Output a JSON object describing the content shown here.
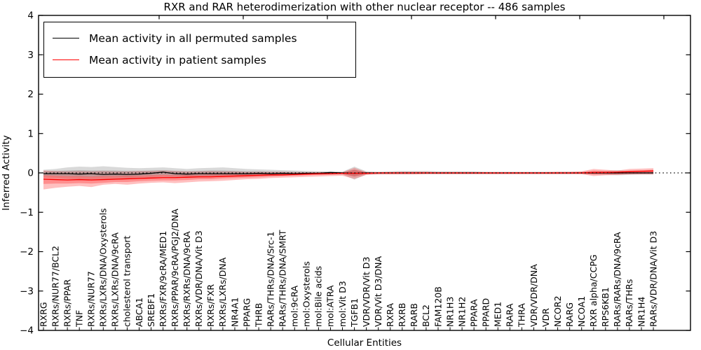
{
  "chart_data": {
    "type": "line",
    "title": "RXR and RAR heterodimerization with other nuclear receptor -- 486 samples",
    "xlabel": "Cellular Entities",
    "ylabel": "Inferred Activity",
    "ylim": [
      -4,
      4
    ],
    "yticks": [
      4,
      3,
      2,
      1,
      0,
      -1,
      -2,
      -3,
      -4
    ],
    "grid": false,
    "legend_position": "upper left",
    "zero_line": {
      "style": "dotted",
      "color": "#000000",
      "value": 0
    },
    "categories": [
      "RXRG",
      "RXRs/NUR77/BCL2",
      "RXRs/PPAR",
      "TNF",
      "RXRs/NUR77",
      "RXRs/LXRs/DNA/Oxysterols",
      "RXRs/LXRs/DNA/9cRA",
      "cholesterol transport",
      "ABCA1",
      "SREBF1",
      "RXRs/FXR/9cRA/MED1",
      "RXRs/PPAR/9cRA/PGJ2/DNA",
      "RXRs/RXRs/DNA/9cRA",
      "RXRs/VDR/DNA/Vit D3",
      "RXRs/FXR",
      "RXRs/LXRs/DNA",
      "NR4A1",
      "PPARG",
      "THRB",
      "RARs/THRs/DNA/Src-1",
      "RARs/THRs/DNA/SMRT",
      "mol:9cRA",
      "mol:Oxysterols",
      "mol:Bile acids",
      "mol:ATRA",
      "mol:Vit D3",
      "TGFB1",
      "VDR/VDR/Vit D3",
      "VDR/Vit D3/DNA",
      "RXRA",
      "RXRB",
      "RARB",
      "BCL2",
      "FAM120B",
      "NR1H3",
      "NR1H2",
      "PPARA",
      "PPARD",
      "MED1",
      "RARA",
      "THRA",
      "VDR/VDR/DNA",
      "VDR",
      "NCOR2",
      "RARG",
      "NCOA1",
      "RXR alpha/CCPG",
      "RPS6KB1",
      "RARs/RARs/DNA/9cRA",
      "RARs/THRs",
      "NR1H4",
      "RARs/VDR/DNA/Vit D3"
    ],
    "series": [
      {
        "name": "Mean activity in all permuted samples",
        "color": "#000000",
        "band_color": "#808080",
        "values": [
          -0.02,
          -0.02,
          -0.02,
          -0.03,
          -0.02,
          -0.04,
          -0.03,
          -0.04,
          -0.03,
          -0.01,
          0.02,
          -0.02,
          -0.03,
          -0.02,
          -0.02,
          -0.02,
          -0.02,
          -0.02,
          -0.01,
          -0.02,
          -0.01,
          -0.02,
          -0.01,
          -0.01,
          0.01,
          0,
          -0.01,
          0,
          0,
          0,
          0,
          0,
          0,
          0,
          0,
          0,
          0,
          0,
          0,
          0,
          0,
          0,
          0,
          0,
          0,
          0,
          0,
          0,
          0,
          0,
          0,
          0
        ],
        "band_outer_upper": [
          0.08,
          0.1,
          0.14,
          0.16,
          0.15,
          0.17,
          0.15,
          0.13,
          0.12,
          0.13,
          0.14,
          0.12,
          0.1,
          0.12,
          0.13,
          0.14,
          0.12,
          0.1,
          0.09,
          0.08,
          0.07,
          0.06,
          0.05,
          0.04,
          0.04,
          0.03,
          0.16,
          0.04,
          0.03,
          0.04,
          0.05,
          0.05,
          0.05,
          0.04,
          0.04,
          0.04,
          0.04,
          0.03,
          0.03,
          0.03,
          0.03,
          0.03,
          0.03,
          0.03,
          0.03,
          0.03,
          0.04,
          0.05,
          0.07,
          0.05,
          0.05,
          0.05
        ],
        "band_outer_lower": [
          -0.12,
          -0.13,
          -0.15,
          -0.16,
          -0.17,
          -0.16,
          -0.15,
          -0.16,
          -0.14,
          -0.12,
          -0.1,
          -0.12,
          -0.13,
          -0.12,
          -0.11,
          -0.1,
          -0.1,
          -0.09,
          -0.08,
          -0.08,
          -0.07,
          -0.06,
          -0.05,
          -0.05,
          -0.04,
          -0.04,
          -0.17,
          -0.04,
          -0.03,
          -0.03,
          -0.03,
          -0.03,
          -0.03,
          -0.03,
          -0.03,
          -0.03,
          -0.03,
          -0.03,
          -0.03,
          -0.03,
          -0.03,
          -0.03,
          -0.03,
          -0.03,
          -0.03,
          -0.03,
          -0.04,
          -0.05,
          -0.06,
          -0.05,
          -0.04,
          -0.04
        ],
        "band_inner_upper": [
          0.04,
          0.05,
          0.06,
          0.07,
          0.06,
          0.06,
          0.06,
          0.05,
          0.05,
          0.06,
          0.07,
          0.05,
          0.04,
          0.05,
          0.06,
          0.06,
          0.05,
          0.04,
          0.04,
          0.03,
          0.03,
          0.03,
          0.02,
          0.02,
          0.02,
          0.02,
          0.08,
          0.02,
          0.01,
          0.02,
          0.02,
          0.02,
          0.02,
          0.02,
          0.02,
          0.02,
          0.02,
          0.01,
          0.01,
          0.01,
          0.01,
          0.01,
          0.01,
          0.01,
          0.01,
          0.01,
          0.02,
          0.02,
          0.03,
          0.02,
          0.02,
          0.02
        ],
        "band_inner_lower": [
          -0.07,
          -0.08,
          -0.09,
          -0.1,
          -0.1,
          -0.1,
          -0.09,
          -0.1,
          -0.08,
          -0.07,
          -0.05,
          -0.07,
          -0.08,
          -0.07,
          -0.07,
          -0.06,
          -0.06,
          -0.06,
          -0.05,
          -0.05,
          -0.04,
          -0.04,
          -0.03,
          -0.03,
          -0.03,
          -0.02,
          -0.09,
          -0.02,
          -0.02,
          -0.02,
          -0.02,
          -0.02,
          -0.02,
          -0.02,
          -0.02,
          -0.02,
          -0.02,
          -0.01,
          -0.01,
          -0.01,
          -0.01,
          -0.01,
          -0.01,
          -0.01,
          -0.01,
          -0.01,
          -0.02,
          -0.02,
          -0.03,
          -0.02,
          -0.02,
          -0.02
        ]
      },
      {
        "name": "Mean activity in patient samples",
        "color": "#ff0000",
        "band_color": "#ff3030",
        "values": [
          -0.16,
          -0.17,
          -0.18,
          -0.17,
          -0.18,
          -0.17,
          -0.16,
          -0.15,
          -0.14,
          -0.13,
          -0.12,
          -0.12,
          -0.11,
          -0.1,
          -0.1,
          -0.09,
          -0.08,
          -0.07,
          -0.06,
          -0.05,
          -0.05,
          -0.04,
          -0.03,
          -0.02,
          -0.02,
          -0.01,
          -0.01,
          -0.01,
          0,
          0,
          0,
          0,
          0,
          0,
          0,
          0,
          0,
          0,
          0,
          0,
          0,
          0,
          0,
          0,
          0,
          0,
          0.01,
          0.01,
          0.02,
          0.03,
          0.04,
          0.05
        ],
        "band_outer_upper": [
          0.06,
          0.05,
          0.04,
          0.05,
          0.04,
          0.05,
          0.04,
          0.04,
          0.05,
          0.05,
          0.06,
          0.05,
          0.04,
          0.04,
          0.05,
          0.04,
          0.04,
          0.03,
          0.03,
          0.03,
          0.03,
          0.02,
          0.02,
          0.02,
          0.02,
          0.02,
          0.13,
          0.02,
          0.02,
          0.02,
          0.03,
          0.03,
          0.03,
          0.02,
          0.02,
          0.02,
          0.02,
          0.02,
          0.02,
          0.02,
          0.02,
          0.02,
          0.02,
          0.03,
          0.03,
          0.04,
          0.1,
          0.08,
          0.06,
          0.1,
          0.11,
          0.12
        ],
        "band_outer_lower": [
          -0.42,
          -0.38,
          -0.35,
          -0.33,
          -0.36,
          -0.3,
          -0.28,
          -0.3,
          -0.27,
          -0.25,
          -0.24,
          -0.26,
          -0.24,
          -0.22,
          -0.21,
          -0.2,
          -0.18,
          -0.16,
          -0.15,
          -0.13,
          -0.12,
          -0.11,
          -0.1,
          -0.09,
          -0.08,
          -0.07,
          -0.15,
          -0.05,
          -0.04,
          -0.04,
          -0.04,
          -0.04,
          -0.03,
          -0.03,
          -0.03,
          -0.03,
          -0.03,
          -0.03,
          -0.03,
          -0.03,
          -0.03,
          -0.03,
          -0.03,
          -0.03,
          -0.03,
          -0.03,
          -0.08,
          -0.06,
          -0.05,
          -0.04,
          -0.04,
          -0.04
        ],
        "band_inner_upper": [
          -0.06,
          -0.07,
          -0.08,
          -0.08,
          -0.09,
          -0.08,
          -0.08,
          -0.07,
          -0.07,
          -0.06,
          -0.05,
          -0.06,
          -0.05,
          -0.05,
          -0.04,
          -0.04,
          -0.03,
          -0.03,
          -0.02,
          -0.02,
          -0.02,
          -0.01,
          -0.01,
          -0.01,
          0,
          0,
          0.08,
          0.01,
          0.01,
          0.01,
          0.01,
          0.01,
          0.01,
          0.01,
          0.01,
          0.01,
          0.01,
          0.01,
          0.01,
          0.01,
          0.01,
          0.01,
          0.01,
          0.01,
          0.01,
          0.02,
          0.06,
          0.05,
          0.04,
          0.06,
          0.07,
          0.08
        ],
        "band_inner_lower": [
          -0.28,
          -0.27,
          -0.27,
          -0.26,
          -0.27,
          -0.25,
          -0.23,
          -0.23,
          -0.21,
          -0.2,
          -0.19,
          -0.19,
          -0.18,
          -0.16,
          -0.16,
          -0.14,
          -0.13,
          -0.12,
          -0.11,
          -0.09,
          -0.08,
          -0.07,
          -0.06,
          -0.05,
          -0.04,
          -0.03,
          -0.09,
          -0.03,
          -0.02,
          -0.02,
          -0.02,
          -0.02,
          -0.02,
          -0.02,
          -0.02,
          -0.02,
          -0.02,
          -0.02,
          -0.02,
          -0.02,
          -0.02,
          -0.02,
          -0.02,
          -0.02,
          -0.02,
          -0.02,
          -0.04,
          -0.03,
          -0.03,
          -0.02,
          -0.01,
          0
        ]
      }
    ]
  }
}
